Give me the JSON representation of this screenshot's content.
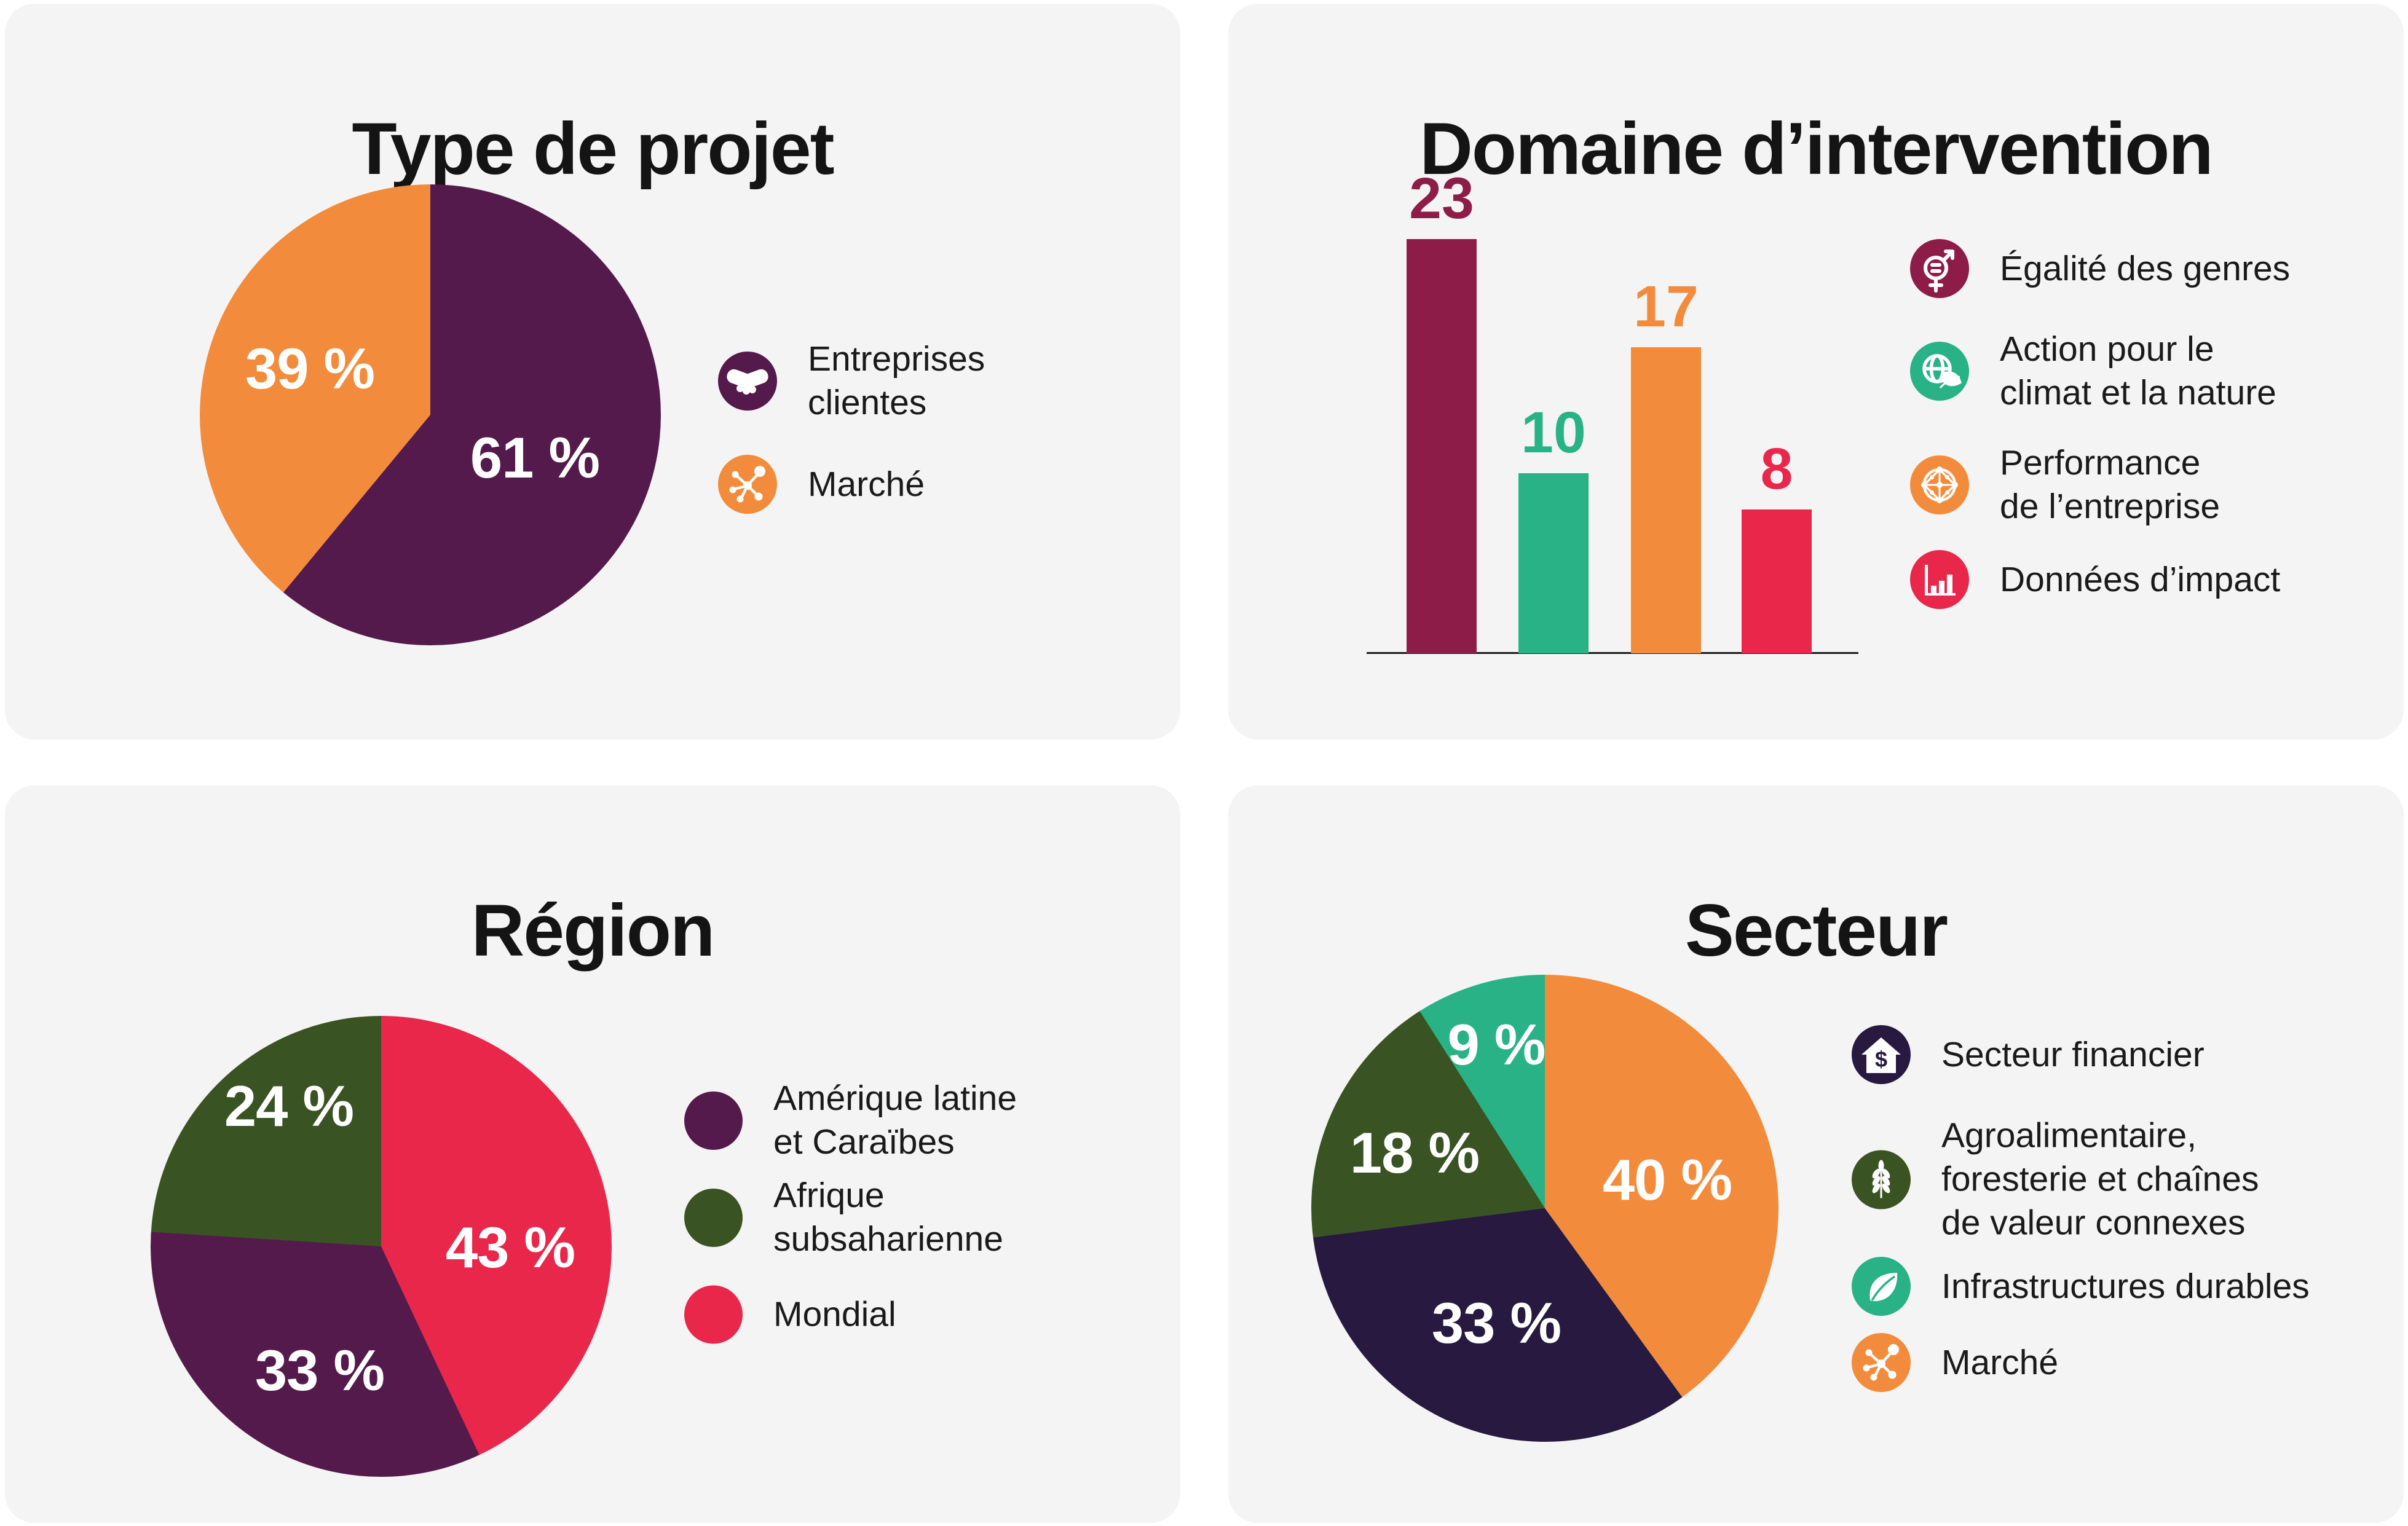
{
  "colors": {
    "plum": "#541A4C",
    "orange": "#F28C3C",
    "maroon": "#8E1C49",
    "teal": "#28B285",
    "red": "#E8274B",
    "forest": "#3A5323",
    "navy": "#27193F",
    "ink": "#1A1A1A",
    "card_background": "#F4F4F4"
  },
  "chart_data": [
    {
      "type": "pie",
      "title": "Type de projet",
      "slices": [
        {
          "name": "Entreprises clientes",
          "value": 61,
          "label": "61 %",
          "color": "#541A4C"
        },
        {
          "name": "Marché",
          "value": 39,
          "label": "39 %",
          "color": "#F28C3C"
        }
      ],
      "legend_position": "right",
      "legend": [
        {
          "icon": "handshake-icon",
          "color": "#541A4C",
          "lines": [
            "Entreprises",
            "clientes"
          ]
        },
        {
          "icon": "network-icon",
          "color": "#F28C3C",
          "lines": [
            "Marché"
          ]
        }
      ]
    },
    {
      "type": "bar",
      "title": "Domaine d’intervention",
      "categories": [
        "Égalité des genres",
        "Action pour le climat et la nature",
        "Performance de l’entreprise",
        "Données d’impact"
      ],
      "values": [
        23,
        10,
        17,
        8
      ],
      "colors": [
        "#8E1C49",
        "#28B285",
        "#F28C3C",
        "#E8274B"
      ],
      "xlabel": "",
      "ylabel": "",
      "ylim": [
        0,
        24
      ],
      "grid": false,
      "legend_position": "right",
      "legend": [
        {
          "icon": "gender-equality-icon",
          "color": "#8E1C49",
          "lines": [
            "Égalité des genres"
          ]
        },
        {
          "icon": "globe-leaf-icon",
          "color": "#28B285",
          "lines": [
            "Action pour le",
            "climat et la nature"
          ]
        },
        {
          "icon": "network-sphere-icon",
          "color": "#F28C3C",
          "lines": [
            "Performance",
            "de l’entreprise"
          ]
        },
        {
          "icon": "impact-bars-icon",
          "color": "#E8274B",
          "lines": [
            "Données d’impact"
          ]
        }
      ]
    },
    {
      "type": "pie",
      "title": "Région",
      "slices": [
        {
          "name": "Mondial",
          "value": 43,
          "label": "43 %",
          "color": "#E8274B"
        },
        {
          "name": "Amérique latine et Caraïbes",
          "value": 33,
          "label": "33 %",
          "color": "#541A4C"
        },
        {
          "name": "Afrique subsaharienne",
          "value": 24,
          "label": "24 %",
          "color": "#3A5323"
        }
      ],
      "legend_position": "right",
      "legend": [
        {
          "icon": "dot",
          "color": "#541A4C",
          "lines": [
            "Amérique latine",
            "et Caraïbes"
          ]
        },
        {
          "icon": "dot",
          "color": "#3A5323",
          "lines": [
            "Afrique",
            "subsaharienne"
          ]
        },
        {
          "icon": "dot",
          "color": "#E8274B",
          "lines": [
            "Mondial"
          ]
        }
      ]
    },
    {
      "type": "pie",
      "title": "Secteur",
      "slices": [
        {
          "name": "Marché",
          "value": 40,
          "label": "40 %",
          "color": "#F28C3C"
        },
        {
          "name": "Secteur financier",
          "value": 33,
          "label": "33 %",
          "color": "#27193F"
        },
        {
          "name": "Agroalimentaire, foresterie et chaînes de valeur connexes",
          "value": 18,
          "label": "18 %",
          "color": "#3A5323"
        },
        {
          "name": "Infrastructures durables",
          "value": 9,
          "label": "9 %",
          "color": "#28B285"
        }
      ],
      "legend_position": "right",
      "legend": [
        {
          "icon": "house-dollar-icon",
          "color": "#27193F",
          "lines": [
            "Secteur financier"
          ]
        },
        {
          "icon": "wheat-icon",
          "color": "#3A5323",
          "lines": [
            "Agroalimentaire,",
            "foresterie et chaînes",
            "de valeur connexes"
          ]
        },
        {
          "icon": "leaf-icon",
          "color": "#28B285",
          "lines": [
            "Infrastructures durables"
          ]
        },
        {
          "icon": "network-icon",
          "color": "#F28C3C",
          "lines": [
            "Marché"
          ]
        }
      ]
    }
  ]
}
